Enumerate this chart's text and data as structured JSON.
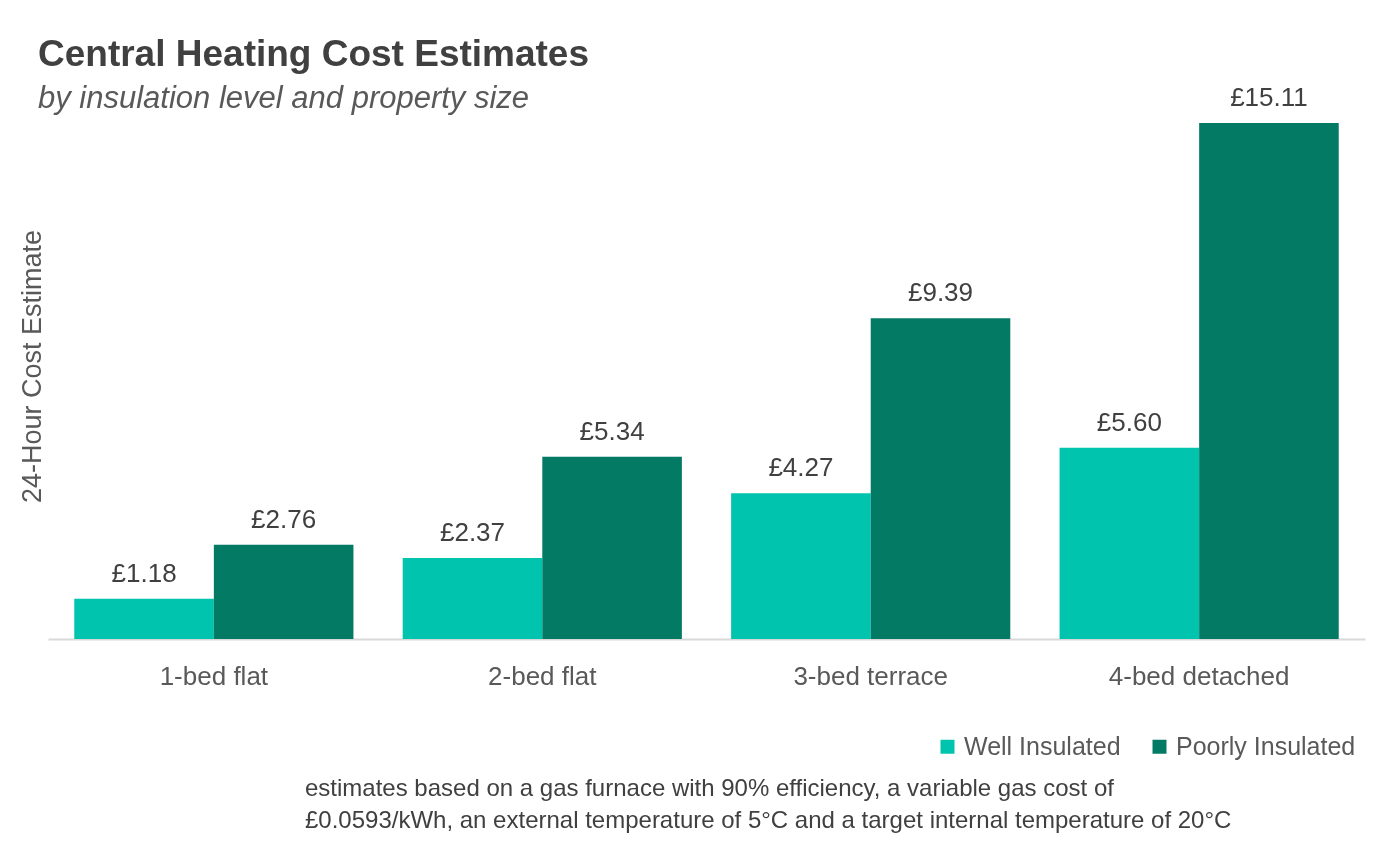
{
  "chart_data": {
    "type": "bar",
    "title": "Central Heating Cost Estimates",
    "subtitle": "by insulation level and property size",
    "ylabel": "24-Hour Cost Estimate",
    "categories": [
      "1-bed flat",
      "2-bed flat",
      "3-bed terrace",
      "4-bed detached"
    ],
    "series": [
      {
        "name": "Well Insulated",
        "color": "#00c4ae",
        "values": [
          1.18,
          2.37,
          4.27,
          5.6
        ],
        "value_labels": [
          "£1.18",
          "£2.37",
          "£4.27",
          "£5.60"
        ]
      },
      {
        "name": "Poorly Insulated",
        "color": "#037a64",
        "values": [
          2.76,
          5.34,
          9.39,
          15.11
        ],
        "value_labels": [
          "£2.76",
          "£5.34",
          "£9.39",
          "£15.11"
        ]
      }
    ],
    "legend": "bottom right",
    "tick_labels": "x",
    "annotations": [
      "estimates based on a gas furnace with 90% efficiency, a variable gas cost of £0.0593/kWh, an external temperature of 5°C and a target internal temperature of 20°C"
    ]
  }
}
